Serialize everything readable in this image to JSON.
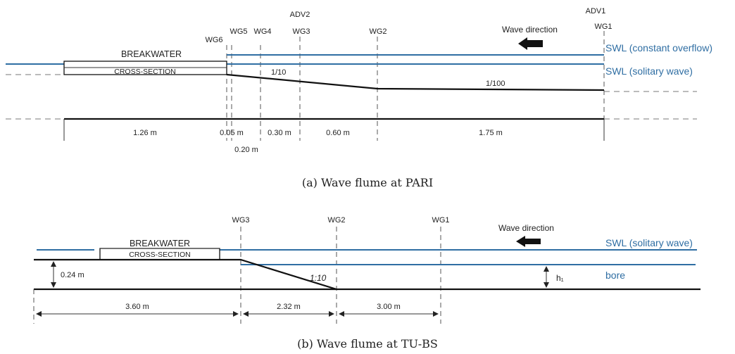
{
  "panel_a": {
    "caption": "(a) Wave flume at PARI",
    "breakwater_label": "BREAKWATER",
    "cross_section_label": "CROSS-SECTION",
    "swl_overflow_label": "SWL (constant overflow)",
    "swl_solitary_label": "SWL (solitary wave)",
    "wave_direction_label": "Wave direction",
    "slope_1_label": "1/10",
    "slope_2_label": "1/100",
    "gauges": {
      "wg6": "WG6",
      "wg5": "WG5",
      "wg4": "WG4",
      "wg3": "WG3",
      "adv2": "ADV2",
      "wg2": "WG2",
      "adv1": "ADV1",
      "wg1": "WG1"
    },
    "dimensions": {
      "d1": "1.26 m",
      "d2": "0.05 m",
      "d3": "0.30 m",
      "d4": "0.60 m",
      "d5": "1.75 m",
      "d6": "0.20 m"
    }
  },
  "panel_b": {
    "caption": "(b) Wave flume at TU-BS",
    "breakwater_label": "BREAKWATER",
    "cross_section_label": "CROSS-SECTION",
    "swl_solitary_label": "SWL (solitary wave)",
    "bore_label": "bore",
    "wave_direction_label": "Wave direction",
    "slope_label": "1:10",
    "height_label": "0.24 m",
    "h1_label": "h₁",
    "gauges": {
      "wg3": "WG3",
      "wg2": "WG2",
      "wg1": "WG1"
    },
    "dimensions": {
      "d1": "3.60 m",
      "d2": "2.32 m",
      "d3": "3.00 m"
    }
  }
}
